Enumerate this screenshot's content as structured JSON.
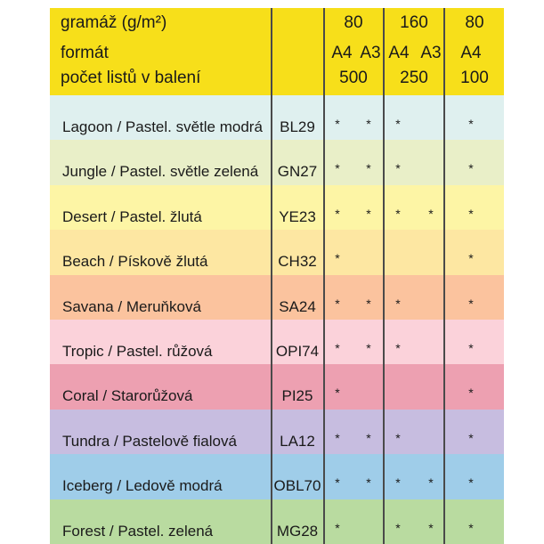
{
  "header": {
    "weight_label": "gramáž (g/m²)",
    "format_label": "formát",
    "sheets_label": "počet listů v balení",
    "weights": [
      "80",
      "160",
      "80"
    ],
    "formats": [
      "A4",
      "A3",
      "A4",
      "A3",
      "A4"
    ],
    "sheets": [
      "500",
      "250",
      "100"
    ]
  },
  "colors": {
    "header_bg": "#f7df1a",
    "rule": "#4a4a4a"
  },
  "rows": [
    {
      "name": "Lagoon / Pastel. světle modrá",
      "code": "BL29",
      "bg": "#dff0ef",
      "marks": [
        "*",
        "*",
        "*",
        "",
        "*"
      ]
    },
    {
      "name": "Jungle / Pastel. světle zelená",
      "code": "GN27",
      "bg": "#e9efc8",
      "marks": [
        "*",
        "*",
        "*",
        "",
        "*"
      ]
    },
    {
      "name": "Desert / Pastel. žlutá",
      "code": "YE23",
      "bg": "#fdf5a5",
      "marks": [
        "*",
        "*",
        "*",
        "*",
        "*"
      ]
    },
    {
      "name": "Beach / Pískově žlutá",
      "code": "CH32",
      "bg": "#fde7a2",
      "marks": [
        "*",
        "",
        "",
        "",
        "*"
      ]
    },
    {
      "name": "Savana / Meruňková",
      "code": "SA24",
      "bg": "#fbc39e",
      "marks": [
        "*",
        "*",
        "*",
        "",
        "*"
      ]
    },
    {
      "name": "Tropic / Pastel. růžová",
      "code": "OPI74",
      "bg": "#fbd2da",
      "marks": [
        "*",
        "*",
        "*",
        "",
        "*"
      ]
    },
    {
      "name": "Coral / Starorůžová",
      "code": "PI25",
      "bg": "#eda0b1",
      "marks": [
        "*",
        "",
        "",
        "",
        "*"
      ]
    },
    {
      "name": "Tundra / Pastelově fialová",
      "code": "LA12",
      "bg": "#c7bde0",
      "marks": [
        "*",
        "*",
        "*",
        "",
        "*"
      ]
    },
    {
      "name": "Iceberg / Ledově modrá",
      "code": "OBL70",
      "bg": "#9fcde9",
      "marks": [
        "*",
        "*",
        "*",
        "*",
        "*"
      ]
    },
    {
      "name": "Forest / Pastel. zelená",
      "code": "MG28",
      "bg": "#b9dba0",
      "marks": [
        "*",
        "",
        "*",
        "*",
        "*"
      ]
    }
  ]
}
